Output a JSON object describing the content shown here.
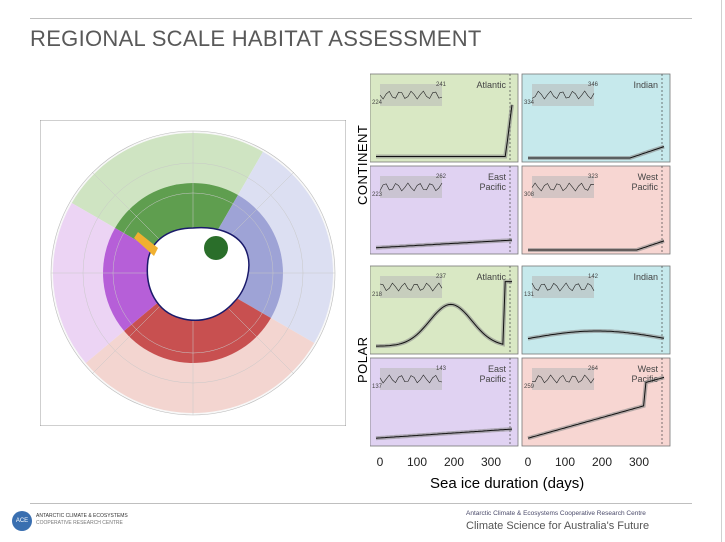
{
  "slide": {
    "title": "REGIONAL SCALE HABITAT ASSESSMENT"
  },
  "rows": [
    {
      "label": "CONTINENT"
    },
    {
      "label": "POLAR"
    }
  ],
  "panels": [
    {
      "row": "CONTINENT",
      "region": "Atlantic",
      "color": "#d9e8c4",
      "inset_labels": [
        "241",
        "224"
      ]
    },
    {
      "row": "CONTINENT",
      "region": "Indian",
      "color": "#c6e9ec",
      "inset_labels": [
        "346",
        "334"
      ]
    },
    {
      "row": "CONTINENT",
      "region": "East\nPacific",
      "color": "#e0d2f2",
      "inset_labels": [
        "262",
        "223"
      ]
    },
    {
      "row": "CONTINENT",
      "region": "West\nPacific",
      "color": "#f7d6d2",
      "inset_labels": [
        "323",
        "308"
      ]
    },
    {
      "row": "POLAR",
      "region": "Atlantic",
      "color": "#d9e8c4",
      "inset_labels": [
        "237",
        "218"
      ]
    },
    {
      "row": "POLAR",
      "region": "Indian",
      "color": "#c6e9ec",
      "inset_labels": [
        "142",
        "131"
      ]
    },
    {
      "row": "POLAR",
      "region": "East\nPacific",
      "color": "#e0d2f2",
      "inset_labels": [
        "143",
        "137"
      ]
    },
    {
      "row": "POLAR",
      "region": "West\nPacific",
      "color": "#f7d6d2",
      "inset_labels": [
        "264",
        "259"
      ]
    }
  ],
  "axis": {
    "xlabel": "Sea ice duration (days)",
    "xticks": [
      "0",
      "100",
      "200",
      "300",
      "0",
      "100",
      "200",
      "300"
    ]
  },
  "map": {
    "sector_colors": {
      "atlantic": "#5f9e4f",
      "indian": "#9ea3d6",
      "east_pacific": "#b65fd8",
      "west_pacific": "#c85050"
    }
  },
  "footer": {
    "logo_line1": "ANTARCTIC CLIMATE & ECOSYSTEMS",
    "logo_line2": "COOPERATIVE RESEARCH CENTRE",
    "org": "Antarctic Climate & Ecosystems Cooperative Research Centre",
    "tagline": "Climate Science for Australia's Future"
  }
}
